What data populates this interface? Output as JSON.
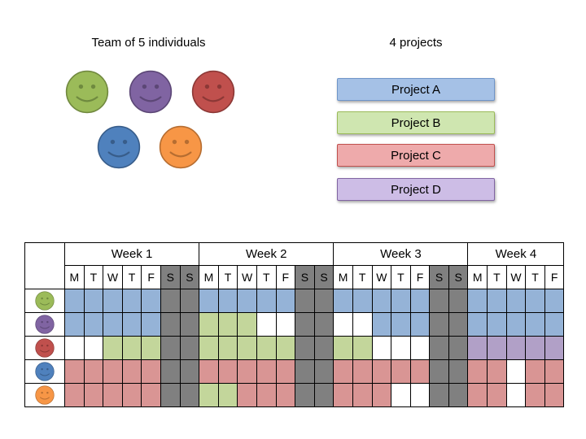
{
  "team": {
    "heading": "Team of 5 individuals",
    "members": [
      {
        "name": "green-member",
        "color": "#9bbb59",
        "border": "#71893f",
        "eye": "#6f8a3f"
      },
      {
        "name": "purple-member",
        "color": "#8064a2",
        "border": "#5c4776",
        "eye": "#5c4776"
      },
      {
        "name": "red-member",
        "color": "#c0504d",
        "border": "#8c3836",
        "eye": "#8c3836"
      },
      {
        "name": "blue-member",
        "color": "#4f81bd",
        "border": "#385d8a",
        "eye": "#385d8a"
      },
      {
        "name": "orange-member",
        "color": "#f79646",
        "border": "#b66d31",
        "eye": "#b66d31"
      }
    ]
  },
  "projects": {
    "heading": "4 projects",
    "items": [
      {
        "label": "Project A",
        "fill": "#a5c1e6",
        "border": "#6f95c9",
        "key": "A"
      },
      {
        "label": "Project B",
        "fill": "#cfe6b0",
        "border": "#9bbb59",
        "key": "B"
      },
      {
        "label": "Project C",
        "fill": "#eeaaab",
        "border": "#c0504d",
        "key": "C"
      },
      {
        "label": "Project D",
        "fill": "#cdbde6",
        "border": "#8064a2",
        "key": "D"
      }
    ]
  },
  "schedule": {
    "weeks": [
      {
        "label": "Week 1",
        "days": [
          "M",
          "T",
          "W",
          "T",
          "F",
          "S",
          "S"
        ]
      },
      {
        "label": "Week 2",
        "days": [
          "M",
          "T",
          "W",
          "T",
          "F",
          "S",
          "S"
        ]
      },
      {
        "label": "Week 3",
        "days": [
          "M",
          "T",
          "W",
          "T",
          "F",
          "S",
          "S"
        ]
      },
      {
        "label": "Week 4",
        "days": [
          "M",
          "T",
          "W",
          "T",
          "F"
        ]
      }
    ],
    "cell_colors": {
      "A": "#95b3d7",
      "B": "#c3d69b",
      "C": "#d99594",
      "D": "#b1a0c7",
      "W": "#808080",
      "-": "#ffffff"
    },
    "rows": [
      {
        "member": "green-member",
        "cells": [
          "A",
          "A",
          "A",
          "A",
          "A",
          "W",
          "W",
          "A",
          "A",
          "A",
          "A",
          "A",
          "W",
          "W",
          "A",
          "A",
          "A",
          "A",
          "A",
          "W",
          "W",
          "A",
          "A",
          "A",
          "A",
          "A"
        ]
      },
      {
        "member": "purple-member",
        "cells": [
          "A",
          "A",
          "A",
          "A",
          "A",
          "W",
          "W",
          "B",
          "B",
          "B",
          "-",
          "-",
          "W",
          "W",
          "-",
          "-",
          "A",
          "A",
          "A",
          "W",
          "W",
          "A",
          "A",
          "A",
          "A",
          "A"
        ]
      },
      {
        "member": "red-member",
        "cells": [
          "-",
          "-",
          "B",
          "B",
          "B",
          "W",
          "W",
          "B",
          "B",
          "B",
          "B",
          "B",
          "W",
          "W",
          "B",
          "B",
          "-",
          "-",
          "-",
          "W",
          "W",
          "D",
          "D",
          "D",
          "D",
          "D"
        ]
      },
      {
        "member": "blue-member",
        "cells": [
          "C",
          "C",
          "C",
          "C",
          "C",
          "W",
          "W",
          "C",
          "C",
          "C",
          "C",
          "C",
          "W",
          "W",
          "C",
          "C",
          "C",
          "C",
          "C",
          "W",
          "W",
          "C",
          "C",
          "-",
          "C",
          "C"
        ]
      },
      {
        "member": "orange-member",
        "cells": [
          "C",
          "C",
          "C",
          "C",
          "C",
          "W",
          "W",
          "B",
          "B",
          "C",
          "C",
          "C",
          "W",
          "W",
          "C",
          "C",
          "C",
          "-",
          "-",
          "W",
          "W",
          "C",
          "C",
          "-",
          "C",
          "C"
        ]
      }
    ]
  }
}
